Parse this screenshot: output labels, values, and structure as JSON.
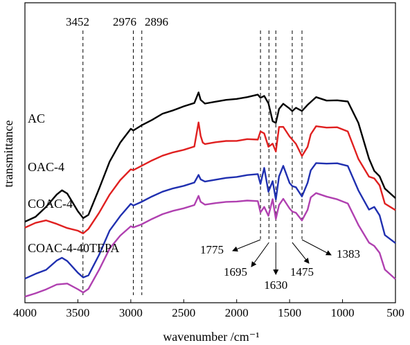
{
  "chart_data": {
    "type": "line",
    "xlabel": "wavenumber /cm⁻¹",
    "ylabel": "transmittance",
    "x_reversed": true,
    "xlim": [
      4000,
      500
    ],
    "xticks": [
      4000,
      3500,
      3000,
      2500,
      2000,
      1500,
      1000,
      500
    ],
    "grid": false,
    "series": [
      {
        "name": "AC",
        "color": "#000000",
        "points": [
          [
            4000,
            0.27
          ],
          [
            3900,
            0.285
          ],
          [
            3800,
            0.32
          ],
          [
            3700,
            0.36
          ],
          [
            3650,
            0.375
          ],
          [
            3600,
            0.365
          ],
          [
            3500,
            0.305
          ],
          [
            3450,
            0.283
          ],
          [
            3400,
            0.292
          ],
          [
            3300,
            0.38
          ],
          [
            3200,
            0.47
          ],
          [
            3100,
            0.535
          ],
          [
            3000,
            0.58
          ],
          [
            2976,
            0.575
          ],
          [
            2900,
            0.59
          ],
          [
            2800,
            0.61
          ],
          [
            2700,
            0.63
          ],
          [
            2600,
            0.64
          ],
          [
            2500,
            0.655
          ],
          [
            2400,
            0.665
          ],
          [
            2360,
            0.7
          ],
          [
            2340,
            0.675
          ],
          [
            2300,
            0.665
          ],
          [
            2200,
            0.67
          ],
          [
            2100,
            0.675
          ],
          [
            2000,
            0.68
          ],
          [
            1900,
            0.685
          ],
          [
            1800,
            0.695
          ],
          [
            1775,
            0.682
          ],
          [
            1740,
            0.69
          ],
          [
            1700,
            0.665
          ],
          [
            1660,
            0.605
          ],
          [
            1630,
            0.6
          ],
          [
            1600,
            0.645
          ],
          [
            1560,
            0.662
          ],
          [
            1500,
            0.648
          ],
          [
            1475,
            0.64
          ],
          [
            1440,
            0.65
          ],
          [
            1383,
            0.64
          ],
          [
            1330,
            0.66
          ],
          [
            1250,
            0.685
          ],
          [
            1150,
            0.675
          ],
          [
            1050,
            0.675
          ],
          [
            950,
            0.67
          ],
          [
            850,
            0.6
          ],
          [
            750,
            0.48
          ],
          [
            700,
            0.44
          ],
          [
            650,
            0.42
          ],
          [
            600,
            0.38
          ],
          [
            500,
            0.35
          ]
        ]
      },
      {
        "name": "OAC-4",
        "color": "#e02020",
        "points": [
          [
            4000,
            0.25
          ],
          [
            3900,
            0.265
          ],
          [
            3800,
            0.275
          ],
          [
            3700,
            0.262
          ],
          [
            3600,
            0.25
          ],
          [
            3500,
            0.24
          ],
          [
            3450,
            0.232
          ],
          [
            3400,
            0.245
          ],
          [
            3300,
            0.3
          ],
          [
            3200,
            0.36
          ],
          [
            3100,
            0.41
          ],
          [
            3000,
            0.445
          ],
          [
            2976,
            0.443
          ],
          [
            2900,
            0.455
          ],
          [
            2800,
            0.475
          ],
          [
            2700,
            0.49
          ],
          [
            2600,
            0.5
          ],
          [
            2500,
            0.51
          ],
          [
            2400,
            0.52
          ],
          [
            2360,
            0.6
          ],
          [
            2340,
            0.555
          ],
          [
            2320,
            0.535
          ],
          [
            2300,
            0.53
          ],
          [
            2200,
            0.535
          ],
          [
            2100,
            0.538
          ],
          [
            2000,
            0.54
          ],
          [
            1900,
            0.545
          ],
          [
            1800,
            0.545
          ],
          [
            1775,
            0.57
          ],
          [
            1740,
            0.565
          ],
          [
            1700,
            0.52
          ],
          [
            1660,
            0.53
          ],
          [
            1630,
            0.505
          ],
          [
            1600,
            0.585
          ],
          [
            1560,
            0.585
          ],
          [
            1500,
            0.555
          ],
          [
            1475,
            0.545
          ],
          [
            1440,
            0.53
          ],
          [
            1383,
            0.49
          ],
          [
            1330,
            0.52
          ],
          [
            1300,
            0.56
          ],
          [
            1250,
            0.588
          ],
          [
            1150,
            0.585
          ],
          [
            1050,
            0.585
          ],
          [
            950,
            0.57
          ],
          [
            850,
            0.48
          ],
          [
            750,
            0.42
          ],
          [
            700,
            0.415
          ],
          [
            650,
            0.39
          ],
          [
            600,
            0.33
          ],
          [
            500,
            0.31
          ]
        ]
      },
      {
        "name": "COAC-4",
        "color": "#2030b0",
        "points": [
          [
            4000,
            0.08
          ],
          [
            3900,
            0.095
          ],
          [
            3800,
            0.11
          ],
          [
            3700,
            0.14
          ],
          [
            3650,
            0.15
          ],
          [
            3600,
            0.14
          ],
          [
            3500,
            0.1
          ],
          [
            3450,
            0.085
          ],
          [
            3400,
            0.09
          ],
          [
            3300,
            0.16
          ],
          [
            3200,
            0.24
          ],
          [
            3100,
            0.29
          ],
          [
            3000,
            0.33
          ],
          [
            2976,
            0.325
          ],
          [
            2900,
            0.335
          ],
          [
            2800,
            0.355
          ],
          [
            2700,
            0.37
          ],
          [
            2600,
            0.38
          ],
          [
            2500,
            0.39
          ],
          [
            2400,
            0.4
          ],
          [
            2360,
            0.425
          ],
          [
            2340,
            0.41
          ],
          [
            2300,
            0.405
          ],
          [
            2200,
            0.41
          ],
          [
            2100,
            0.415
          ],
          [
            2000,
            0.42
          ],
          [
            1900,
            0.425
          ],
          [
            1800,
            0.43
          ],
          [
            1775,
            0.395
          ],
          [
            1740,
            0.45
          ],
          [
            1700,
            0.37
          ],
          [
            1660,
            0.405
          ],
          [
            1630,
            0.345
          ],
          [
            1600,
            0.42
          ],
          [
            1560,
            0.455
          ],
          [
            1500,
            0.4
          ],
          [
            1475,
            0.39
          ],
          [
            1440,
            0.385
          ],
          [
            1383,
            0.355
          ],
          [
            1330,
            0.4
          ],
          [
            1300,
            0.44
          ],
          [
            1250,
            0.465
          ],
          [
            1150,
            0.465
          ],
          [
            1050,
            0.465
          ],
          [
            950,
            0.455
          ],
          [
            850,
            0.375
          ],
          [
            750,
            0.31
          ],
          [
            700,
            0.32
          ],
          [
            650,
            0.29
          ],
          [
            600,
            0.225
          ],
          [
            500,
            0.2
          ]
        ]
      },
      {
        "name": "COAC-4-40TEPA",
        "color": "#b040b0",
        "points": [
          [
            4000,
            0.02
          ],
          [
            3900,
            0.03
          ],
          [
            3800,
            0.045
          ],
          [
            3700,
            0.06
          ],
          [
            3600,
            0.065
          ],
          [
            3500,
            0.045
          ],
          [
            3450,
            0.035
          ],
          [
            3400,
            0.045
          ],
          [
            3300,
            0.11
          ],
          [
            3200,
            0.18
          ],
          [
            3100,
            0.225
          ],
          [
            3000,
            0.255
          ],
          [
            2976,
            0.252
          ],
          [
            2900,
            0.26
          ],
          [
            2800,
            0.28
          ],
          [
            2700,
            0.295
          ],
          [
            2600,
            0.305
          ],
          [
            2500,
            0.315
          ],
          [
            2400,
            0.325
          ],
          [
            2360,
            0.355
          ],
          [
            2340,
            0.335
          ],
          [
            2300,
            0.328
          ],
          [
            2200,
            0.332
          ],
          [
            2100,
            0.335
          ],
          [
            2000,
            0.338
          ],
          [
            1900,
            0.34
          ],
          [
            1800,
            0.34
          ],
          [
            1775,
            0.3
          ],
          [
            1740,
            0.32
          ],
          [
            1700,
            0.29
          ],
          [
            1660,
            0.345
          ],
          [
            1630,
            0.28
          ],
          [
            1600,
            0.325
          ],
          [
            1560,
            0.345
          ],
          [
            1500,
            0.315
          ],
          [
            1475,
            0.305
          ],
          [
            1440,
            0.3
          ],
          [
            1383,
            0.275
          ],
          [
            1330,
            0.31
          ],
          [
            1300,
            0.35
          ],
          [
            1250,
            0.365
          ],
          [
            1150,
            0.355
          ],
          [
            1050,
            0.345
          ],
          [
            950,
            0.33
          ],
          [
            850,
            0.26
          ],
          [
            750,
            0.2
          ],
          [
            700,
            0.19
          ],
          [
            650,
            0.165
          ],
          [
            600,
            0.11
          ],
          [
            500,
            0.08
          ]
        ]
      }
    ],
    "top_markers": [
      {
        "label": "3452",
        "x": 3452
      },
      {
        "label": "2976",
        "x": 2976
      },
      {
        "label": "2896",
        "x": 2896
      }
    ],
    "marker_lines_only": [
      1775,
      1695,
      1630,
      1475,
      1383
    ],
    "bottom_annotations": [
      {
        "label": "1775",
        "x": 1775,
        "dir": "left"
      },
      {
        "label": "1695",
        "x": 1695,
        "dir": "down-left"
      },
      {
        "label": "1630",
        "x": 1630,
        "dir": "down"
      },
      {
        "label": "1475",
        "x": 1475,
        "dir": "down-right"
      },
      {
        "label": "1383",
        "x": 1383,
        "dir": "right"
      }
    ]
  }
}
